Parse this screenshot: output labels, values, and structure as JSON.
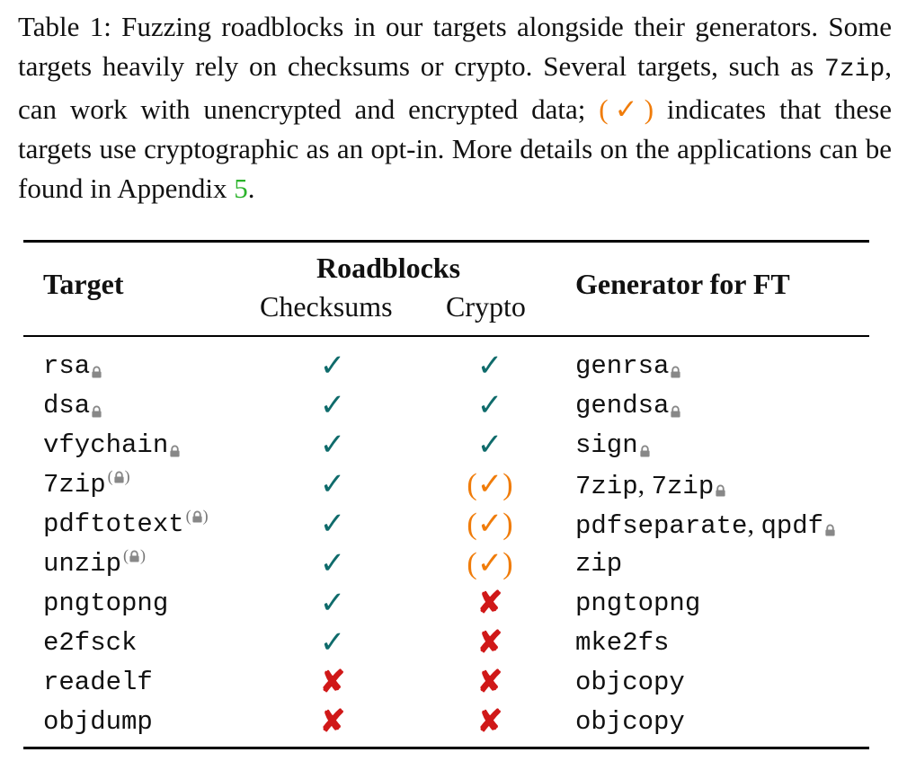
{
  "caption": {
    "part1": "Table 1: Fuzzing roadblocks in our targets alongside their generators. Some targets heavily rely on checksums or crypto. Several targets, such as ",
    "code": "7zip",
    "part2": ", can work with unencrypted and encrypted data; ",
    "opt_symbol": "(✓)",
    "part3": " indicates that these targets use cryptographic as an opt-in.  More details on the applications can be found in Appendix ",
    "appendix_ref": "5",
    "part4": "."
  },
  "header": {
    "target": "Target",
    "roadblocks": "Roadblocks",
    "checksums": "Checksums",
    "crypto": "Crypto",
    "generator": "Generator for FT"
  },
  "symbols": {
    "yes": "✓",
    "no": "✘",
    "opt": "(✓)",
    "lock_icon": "lock-icon"
  },
  "colors": {
    "yes": "#0f6b6b",
    "no": "#d01818",
    "opt": "#f07c0a",
    "appendix_ref": "#2bb32b",
    "lock": "#888888"
  },
  "rows": [
    {
      "target": "rsa",
      "target_lock": "lock",
      "checksums": "✓",
      "crypto": "✓",
      "generators": [
        {
          "name": "genrsa",
          "lock": true
        }
      ]
    },
    {
      "target": "dsa",
      "target_lock": "lock",
      "checksums": "✓",
      "crypto": "✓",
      "generators": [
        {
          "name": "gendsa",
          "lock": true
        }
      ]
    },
    {
      "target": "vfychain",
      "target_lock": "lock",
      "checksums": "✓",
      "crypto": "✓",
      "generators": [
        {
          "name": "sign",
          "lock": true
        }
      ]
    },
    {
      "target": "7zip",
      "target_lock": "optional",
      "checksums": "✓",
      "crypto": "(✓)",
      "generators": [
        {
          "name": "7zip",
          "lock": false
        },
        {
          "name": "7zip",
          "lock": true
        }
      ]
    },
    {
      "target": "pdftotext",
      "target_lock": "optional",
      "checksums": "✓",
      "crypto": "(✓)",
      "generators": [
        {
          "name": "pdfseparate",
          "lock": false
        },
        {
          "name": "qpdf",
          "lock": true
        }
      ]
    },
    {
      "target": "unzip",
      "target_lock": "optional",
      "checksums": "✓",
      "crypto": "(✓)",
      "generators": [
        {
          "name": "zip",
          "lock": false
        }
      ]
    },
    {
      "target": "pngtopng",
      "target_lock": "none",
      "checksums": "✓",
      "crypto": "✘",
      "generators": [
        {
          "name": "pngtopng",
          "lock": false
        }
      ]
    },
    {
      "target": "e2fsck",
      "target_lock": "none",
      "checksums": "✓",
      "crypto": "✘",
      "generators": [
        {
          "name": "mke2fs",
          "lock": false
        }
      ]
    },
    {
      "target": "readelf",
      "target_lock": "none",
      "checksums": "✘",
      "crypto": "✘",
      "generators": [
        {
          "name": "objcopy",
          "lock": false
        }
      ]
    },
    {
      "target": "objdump",
      "target_lock": "none",
      "checksums": "✘",
      "crypto": "✘",
      "generators": [
        {
          "name": "objcopy",
          "lock": false
        }
      ]
    }
  ]
}
